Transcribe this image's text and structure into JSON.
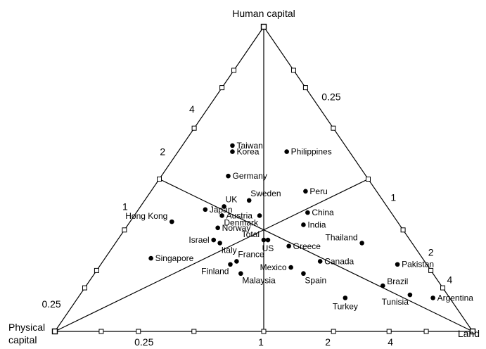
{
  "chart_data": {
    "type": "ternary-scatter",
    "vertices": {
      "top": "Human capital",
      "left": "Physical\ncapital",
      "right": "Land"
    },
    "ratio_labels": [
      {
        "text": "4",
        "edge": "left",
        "t": 0.27
      },
      {
        "text": "2",
        "edge": "left",
        "t": 0.41
      },
      {
        "text": "1",
        "edge": "left",
        "t": 0.59
      },
      {
        "text": "0.25",
        "edge": "left",
        "t": 0.91
      },
      {
        "text": "0.25",
        "edge": "right",
        "t": 0.23
      },
      {
        "text": "1",
        "edge": "right",
        "t": 0.56
      },
      {
        "text": "2",
        "edge": "right",
        "t": 0.74
      },
      {
        "text": "4",
        "edge": "right",
        "t": 0.83
      },
      {
        "text": "0.25",
        "edge": "bottom",
        "t": 0.21
      },
      {
        "text": "1",
        "edge": "bottom",
        "t": 0.49
      },
      {
        "text": "2",
        "edge": "bottom",
        "t": 0.65
      },
      {
        "text": "4",
        "edge": "bottom",
        "t": 0.8
      }
    ],
    "tick_fractions": {
      "left": [
        0.143,
        0.2,
        0.333,
        0.5,
        0.667,
        0.8,
        0.857
      ],
      "right": [
        0.143,
        0.2,
        0.333,
        0.5,
        0.667,
        0.8,
        0.857
      ],
      "bottom": [
        0.111,
        0.2,
        0.333,
        0.5,
        0.667,
        0.8,
        0.889
      ]
    },
    "points": [
      {
        "name": "Taiwan",
        "human": 0.61,
        "physical": 0.27,
        "land": 0.12,
        "anchor": "right"
      },
      {
        "name": "Korea",
        "human": 0.59,
        "physical": 0.28,
        "land": 0.13,
        "anchor": "right"
      },
      {
        "name": "Philippines",
        "human": 0.59,
        "physical": 0.15,
        "land": 0.26,
        "anchor": "right"
      },
      {
        "name": "Germany",
        "human": 0.51,
        "physical": 0.33,
        "land": 0.16,
        "anchor": "right"
      },
      {
        "name": "Sweden",
        "human": 0.43,
        "physical": 0.32,
        "land": 0.25,
        "anchor": "above-right"
      },
      {
        "name": "Peru",
        "human": 0.46,
        "physical": 0.17,
        "land": 0.37,
        "anchor": "right"
      },
      {
        "name": "UK",
        "human": 0.41,
        "physical": 0.39,
        "land": 0.2,
        "anchor": "above-right"
      },
      {
        "name": "Japan",
        "human": 0.4,
        "physical": 0.44,
        "land": 0.16,
        "anchor": "right"
      },
      {
        "name": "Hong Kong",
        "human": 0.36,
        "physical": 0.54,
        "land": 0.1,
        "anchor": "left-above"
      },
      {
        "name": "Austria",
        "human": 0.38,
        "physical": 0.41,
        "land": 0.21,
        "anchor": "right"
      },
      {
        "name": "Denmark",
        "human": 0.38,
        "physical": 0.32,
        "land": 0.3,
        "anchor": "below-left"
      },
      {
        "name": "China",
        "human": 0.39,
        "physical": 0.2,
        "land": 0.41,
        "anchor": "right"
      },
      {
        "name": "India",
        "human": 0.35,
        "physical": 0.23,
        "land": 0.42,
        "anchor": "right"
      },
      {
        "name": "Norway",
        "human": 0.34,
        "physical": 0.44,
        "land": 0.22,
        "anchor": "right"
      },
      {
        "name": "Israel",
        "human": 0.3,
        "physical": 0.47,
        "land": 0.23,
        "anchor": "left"
      },
      {
        "name": "Italy",
        "human": 0.29,
        "physical": 0.46,
        "land": 0.25,
        "anchor": "below-right"
      },
      {
        "name": "Total",
        "human": 0.3,
        "physical": 0.35,
        "land": 0.35,
        "anchor": "left-above"
      },
      {
        "name": "US",
        "human": 0.3,
        "physical": 0.34,
        "land": 0.36,
        "anchor": "below"
      },
      {
        "name": "Greece",
        "human": 0.28,
        "physical": 0.3,
        "land": 0.42,
        "anchor": "right"
      },
      {
        "name": "Thailand",
        "human": 0.29,
        "physical": 0.12,
        "land": 0.59,
        "anchor": "left-above"
      },
      {
        "name": "Singapore",
        "human": 0.24,
        "physical": 0.65,
        "land": 0.11,
        "anchor": "right"
      },
      {
        "name": "France",
        "human": 0.23,
        "physical": 0.45,
        "land": 0.32,
        "anchor": "above-right"
      },
      {
        "name": "Finland",
        "human": 0.22,
        "physical": 0.47,
        "land": 0.31,
        "anchor": "below-left"
      },
      {
        "name": "Canada",
        "human": 0.23,
        "physical": 0.25,
        "land": 0.52,
        "anchor": "right"
      },
      {
        "name": "Pakistan",
        "human": 0.22,
        "physical": 0.07,
        "land": 0.71,
        "anchor": "right"
      },
      {
        "name": "Malaysia",
        "human": 0.19,
        "physical": 0.46,
        "land": 0.35,
        "anchor": "below-right"
      },
      {
        "name": "Mexico",
        "human": 0.21,
        "physical": 0.33,
        "land": 0.46,
        "anchor": "left"
      },
      {
        "name": "Spain",
        "human": 0.19,
        "physical": 0.31,
        "land": 0.5,
        "anchor": "below-right"
      },
      {
        "name": "Brazil",
        "human": 0.15,
        "physical": 0.14,
        "land": 0.71,
        "anchor": "right-above"
      },
      {
        "name": "Turkey",
        "human": 0.11,
        "physical": 0.25,
        "land": 0.64,
        "anchor": "below"
      },
      {
        "name": "Argentina",
        "human": 0.11,
        "physical": 0.04,
        "land": 0.85,
        "anchor": "right"
      },
      {
        "name": "Tunisia",
        "human": 0.12,
        "physical": 0.09,
        "land": 0.79,
        "anchor": "below-left"
      }
    ]
  }
}
